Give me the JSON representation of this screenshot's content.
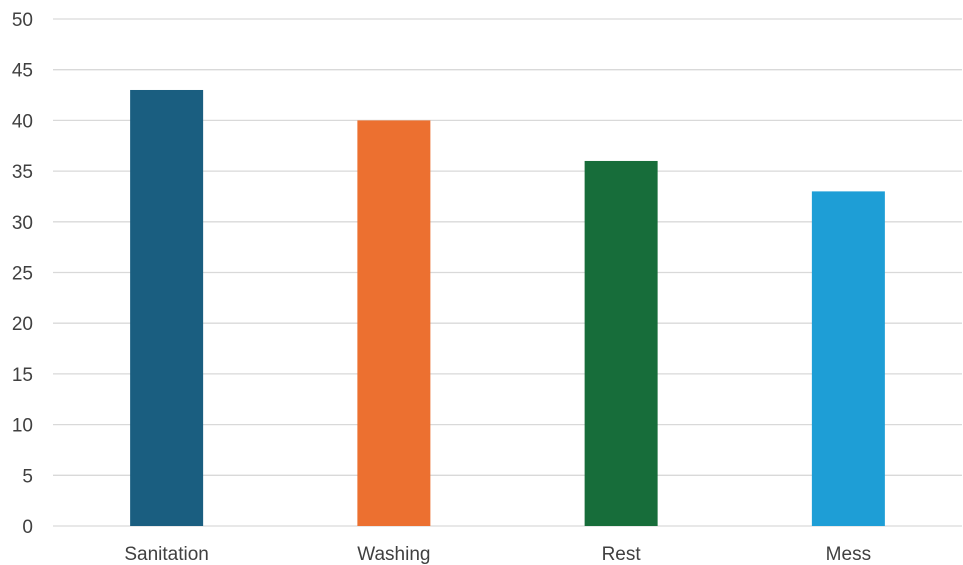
{
  "chart_data": {
    "type": "bar",
    "categories": [
      "Sanitation",
      "Washing",
      "Rest",
      "Mess"
    ],
    "values": [
      43,
      40,
      36,
      33
    ],
    "colors": [
      "#1a5e80",
      "#ec7030",
      "#176d3a",
      "#1e9ed6"
    ],
    "title": "",
    "xlabel": "",
    "ylabel": "",
    "ylim": [
      0,
      50
    ],
    "yticks": [
      0,
      5,
      10,
      15,
      20,
      25,
      30,
      35,
      40,
      45,
      50
    ],
    "grid": true,
    "legend": "none"
  }
}
